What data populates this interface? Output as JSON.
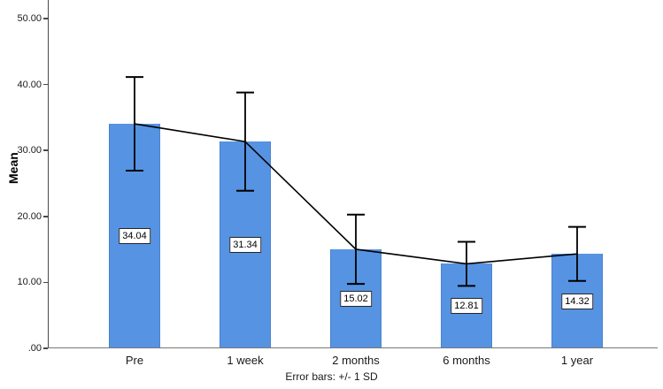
{
  "chart_data": {
    "type": "bar",
    "title": "",
    "categories": [
      "Pre",
      "1 week",
      "2 months",
      "6 months",
      "1 year"
    ],
    "values": [
      34.04,
      31.34,
      15.02,
      12.81,
      14.32
    ],
    "value_labels": [
      "34.04",
      "31.34",
      "15.02",
      "12.81",
      "14.32"
    ],
    "error_sd": [
      7.1,
      7.45,
      5.25,
      3.35,
      4.1
    ],
    "error_bar_note": "Error bars: +/- 1 SD",
    "ylabel": "Mean",
    "xlabel": "",
    "ylim": [
      0,
      50
    ],
    "yticks": [
      {
        "value": 0,
        "label": ".00"
      },
      {
        "value": 10,
        "label": "10.00"
      },
      {
        "value": 20,
        "label": "20.00"
      },
      {
        "value": 30,
        "label": "30.00"
      },
      {
        "value": 40,
        "label": "40.00"
      },
      {
        "value": 50,
        "label": "50.00"
      }
    ],
    "grid": "off",
    "legend": "none",
    "overlay_line": "line connecting category means",
    "colors": {
      "bar_fill": "#5693E2",
      "bar_edge": "#4a82d0",
      "line_and_error_bars": "#000000",
      "axis": "#4a4a4a",
      "background": "#ffffff"
    }
  }
}
